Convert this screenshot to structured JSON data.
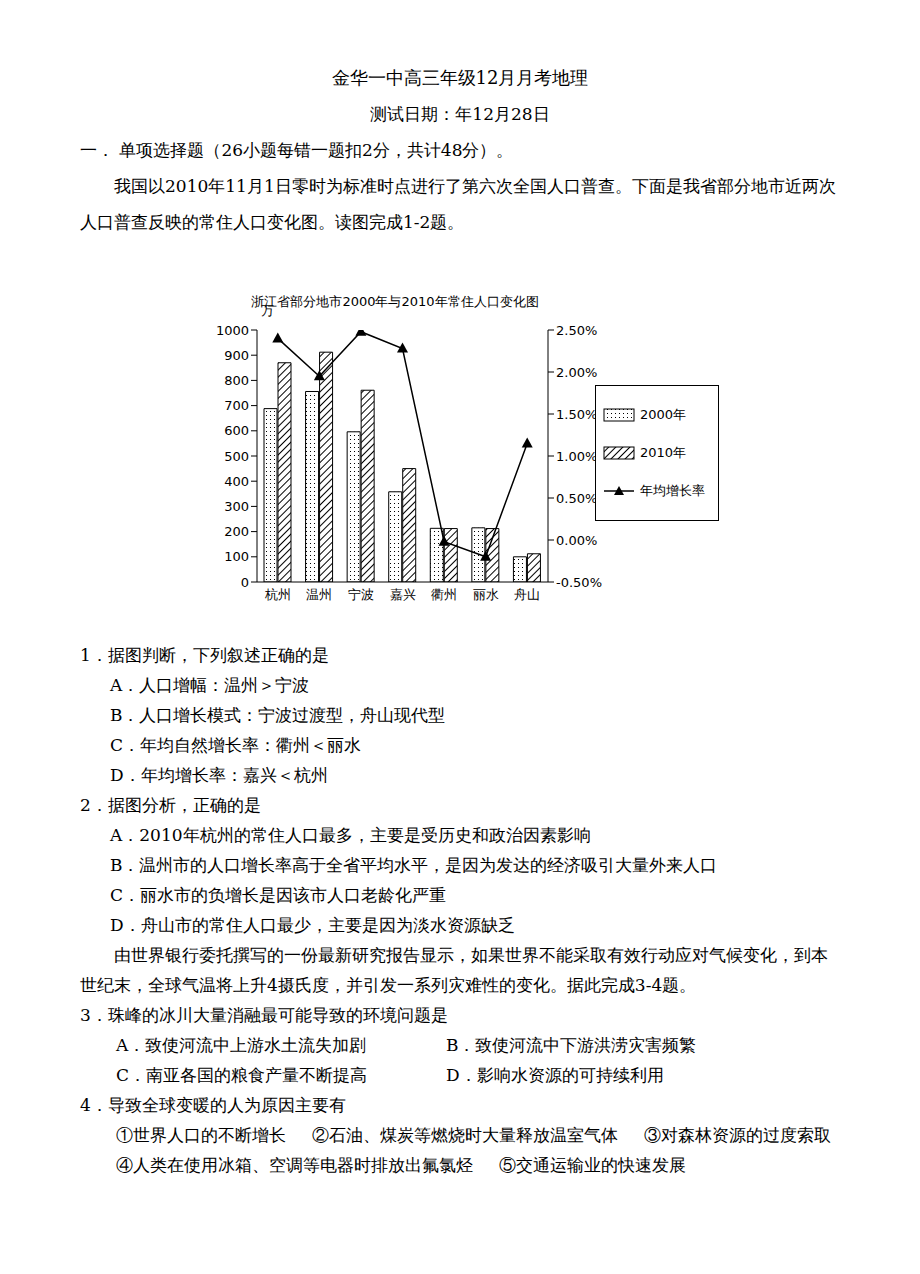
{
  "document": {
    "header": {
      "title": "金华一中高三年级12月月考地理",
      "date": "测试日期：年12月28日"
    },
    "section": "一．  单项选择题（26小题每错一题扣2分，共计48分）。",
    "intro_1": "我国以2010年11月1日零时为标准时点进行了第六次全国人口普查。下面是我省部分地市近两次人口普查反映的常住人口变化图。读图完成1-2题。",
    "questions_1_2": [
      {
        "number": "1．",
        "stem": "据图判断，下列叙述正确的是",
        "options": [
          "A．人口增幅：温州＞宁波",
          "B．人口增长模式：宁波过渡型，舟山现代型",
          "C．年均自然增长率：衢州＜丽水",
          "D．年均增长率：嘉兴＜杭州"
        ]
      },
      {
        "number": "2．",
        "stem": "据图分析，正确的是",
        "options": [
          "A．2010年杭州的常住人口最多，主要是受历史和政治因素影响",
          "B．温州市的人口增长率高于全省平均水平，是因为发达的经济吸引大量外来人口",
          "C．丽水市的负增长是因该市人口老龄化严重",
          "D．舟山市的常住人口最少，主要是因为淡水资源缺乏"
        ]
      }
    ],
    "intro_2": "由世界银行委托撰写的一份最新研究报告显示，如果世界不能采取有效行动应对气候变化，到本世纪末，全球气温将上升4摄氏度，并引发一系列灾难性的变化。据此完成3-4题。",
    "questions_3_4": [
      {
        "number": "3．",
        "stem": "珠峰的冰川大量消融最可能导致的环境问题是",
        "options": [
          "A．致使河流中上游水土流失加剧",
          "B．致使河流中下游洪涝灾害频繁",
          "C．南亚各国的粮食产量不断提高",
          "D．影响水资源的可持续利用"
        ]
      },
      {
        "number": "4．",
        "stem": "导致全球变暖的人为原因主要有",
        "options": [
          "①世界人口的不断增长",
          "②石油、煤炭等燃烧时大量释放温室气体",
          "③对森林资源的过度索取",
          "④人类在使用冰箱、空调等电器时排放出氟氯烃",
          "⑤交通运输业的快速发展"
        ]
      }
    ]
  },
  "chart_data": {
    "type": "bar",
    "title": "浙江省部分地市2000年与2010年常住人口变化图",
    "y_label": "万",
    "categories": [
      "杭州",
      "温州",
      "宁波",
      "嘉兴",
      "衢州",
      "丽水",
      "舟山"
    ],
    "series": [
      {
        "name": "2000年",
        "color": "#000000",
        "values": [
          688,
          756,
          596,
          358,
          213,
          215,
          100
        ]
      },
      {
        "name": "2010年",
        "color": "#000000",
        "values": [
          870,
          912,
          761,
          450,
          212,
          212,
          112
        ]
      },
      {
        "name": "年均增长率",
        "type": "line",
        "axis": "y2",
        "color": "#000000",
        "marker": "triangle",
        "values": [
          2.4,
          1.95,
          2.48,
          2.28,
          -0.02,
          -0.2,
          1.15
        ]
      }
    ],
    "ylim": [
      0,
      1000
    ],
    "yticks": [
      0,
      100,
      200,
      300,
      400,
      500,
      600,
      700,
      800,
      900,
      1000
    ],
    "y2lim": [
      -0.5,
      2.5
    ],
    "y2ticks": [
      {
        "value": -0.5,
        "label": "-0.50%"
      },
      {
        "value": 0,
        "label": "0.00%"
      },
      {
        "value": 0.5,
        "label": "0.50%"
      },
      {
        "value": 1,
        "label": "1.00%"
      },
      {
        "value": 1.5,
        "label": "1.50%"
      },
      {
        "value": 2,
        "label": "2.00%"
      },
      {
        "value": 2.5,
        "label": "2.50%"
      }
    ],
    "grid": false,
    "legend": "right"
  }
}
